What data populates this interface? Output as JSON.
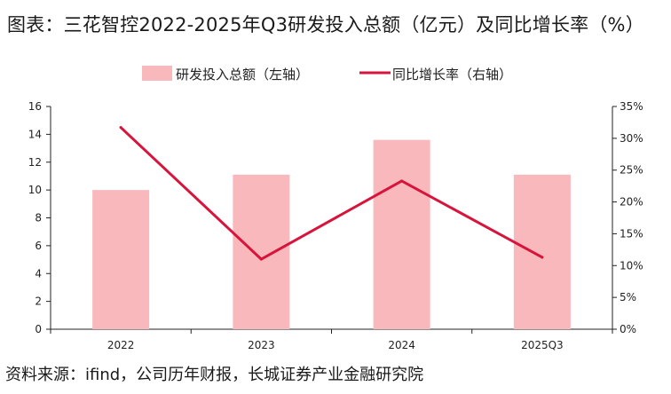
{
  "title": "图表：三花智控2022-2025年Q3研发投入总额（亿元）及同比增长率（%）",
  "source": "资料来源：ifind，公司历年财报，长城证券产业金融研究院",
  "colors": {
    "bar": "#F9B8BB",
    "line": "#D7143C",
    "axis": "#222222"
  },
  "chart_data": {
    "type": "bar",
    "categories": [
      "2022",
      "2023",
      "2024",
      "2025Q3"
    ],
    "series": [
      {
        "name": "研发投入总额（左轴）",
        "type": "bar",
        "axis": "left",
        "values": [
          10.0,
          11.1,
          13.6,
          11.1
        ]
      },
      {
        "name": "同比增长率（右轴）",
        "type": "line",
        "axis": "right",
        "values": [
          31.7,
          11.0,
          23.3,
          11.3
        ]
      }
    ],
    "y_left": {
      "min": 0,
      "max": 16,
      "ticks": [
        "0",
        "2",
        "4",
        "6",
        "8",
        "10",
        "12",
        "14",
        "16"
      ]
    },
    "y_right": {
      "min": 0,
      "max": 35,
      "ticks": [
        "0%",
        "5%",
        "10%",
        "15%",
        "20%",
        "25%",
        "30%",
        "35%"
      ]
    },
    "legend_position": "top-center",
    "grid": false
  }
}
